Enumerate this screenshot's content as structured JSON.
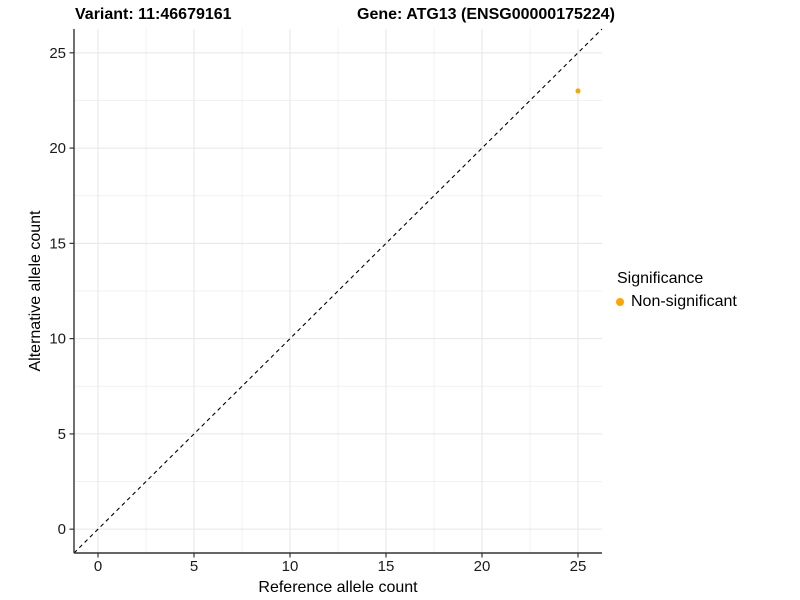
{
  "header": {
    "variant_title": "Variant: 11:46679161",
    "gene_title": "Gene: ATG13 (ENSG00000175224)"
  },
  "chart_data": {
    "type": "scatter",
    "title_left": "Variant: 11:46679161",
    "title_right": "Gene: ATG13 (ENSG00000175224)",
    "xlabel": "Reference allele count",
    "ylabel": "Alternative allele count",
    "xlim": [
      -1.25,
      26.25
    ],
    "ylim": [
      -1.25,
      26.25
    ],
    "xticks": [
      0,
      5,
      10,
      15,
      20,
      25
    ],
    "yticks": [
      0,
      5,
      10,
      15,
      20,
      25
    ],
    "xminor": [
      2.5,
      7.5,
      12.5,
      17.5,
      22.5
    ],
    "yminor": [
      2.5,
      7.5,
      12.5,
      17.5,
      22.5
    ],
    "grid": true,
    "reference_line": {
      "type": "identity-diagonal",
      "style": "dashed",
      "from": [
        -1.25,
        -1.25
      ],
      "to": [
        26.25,
        26.25
      ],
      "color": "#000000"
    },
    "series": [
      {
        "name": "Non-significant",
        "color": "#FFA500",
        "points": [
          {
            "x": 25,
            "y": 23
          }
        ]
      }
    ],
    "legend": {
      "title": "Significance",
      "position": "right",
      "items": [
        {
          "label": "Non-significant",
          "color": "#FFA500"
        }
      ]
    }
  },
  "colors": {
    "background": "#ffffff",
    "grid_major": "#e6e6e6",
    "grid_minor": "#f1f1f1",
    "axis_line": "#333333",
    "tick_mark": "#333333",
    "tick_text": "#1a1a1a",
    "dashed_line": "#000000",
    "point": "#FFA500"
  }
}
